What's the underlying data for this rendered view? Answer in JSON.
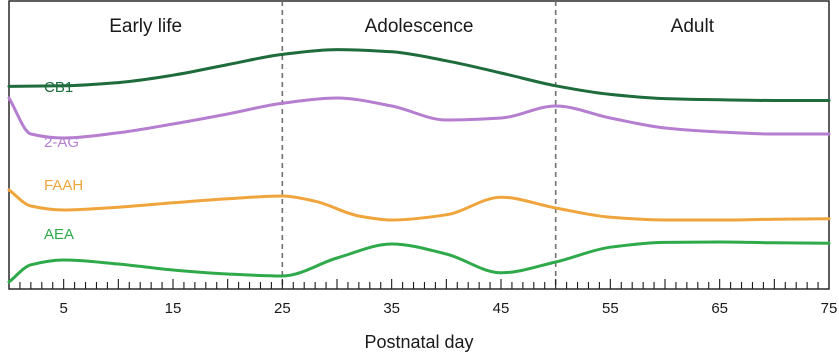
{
  "chart_data": {
    "type": "line",
    "xlabel": "Postnatal day",
    "ylabel": "",
    "xlim": [
      0,
      75
    ],
    "x_ticks": [
      5,
      15,
      25,
      35,
      45,
      55,
      65,
      75
    ],
    "periods": [
      {
        "label": "Early life",
        "start": 0,
        "end": 25
      },
      {
        "label": "Adolescence",
        "start": 25,
        "end": 50
      },
      {
        "label": "Adult",
        "start": 50,
        "end": 75
      }
    ],
    "period_boundaries": [
      25,
      50
    ],
    "grid": false,
    "legend": "inline labels at left",
    "series": [
      {
        "name": "CB1",
        "color": "#1e6b3c",
        "x": [
          0,
          5,
          10,
          15,
          20,
          25,
          30,
          35,
          40,
          45,
          50,
          55,
          60,
          65,
          70,
          75
        ],
        "y": [
          2.3,
          2.32,
          2.42,
          2.65,
          2.98,
          3.3,
          3.45,
          3.38,
          3.1,
          2.72,
          2.32,
          2.05,
          1.92,
          1.88,
          1.86,
          1.86
        ]
      },
      {
        "name": "2-AG",
        "color": "#b57ed0",
        "x": [
          0,
          2,
          5,
          10,
          15,
          20,
          25,
          30,
          35,
          40,
          45,
          50,
          55,
          60,
          65,
          70,
          75
        ],
        "y": [
          1.95,
          1.05,
          0.95,
          1.08,
          1.3,
          1.55,
          1.82,
          1.95,
          1.75,
          1.4,
          1.45,
          1.75,
          1.45,
          1.2,
          1.1,
          1.05,
          1.05
        ]
      },
      {
        "name": "FAAH",
        "color": "#f0a43c",
        "x": [
          0,
          2,
          5,
          10,
          15,
          20,
          25,
          28,
          32,
          35,
          40,
          45,
          50,
          55,
          60,
          65,
          70,
          75
        ],
        "y": [
          0.8,
          0.4,
          0.3,
          0.37,
          0.48,
          0.58,
          0.65,
          0.52,
          0.15,
          0.05,
          0.18,
          0.62,
          0.35,
          0.12,
          0.05,
          0.05,
          0.07,
          0.08
        ]
      },
      {
        "name": "AEA",
        "color": "#2eaa4a",
        "x": [
          0,
          2,
          5,
          10,
          15,
          20,
          25,
          30,
          35,
          40,
          45,
          50,
          55,
          60,
          65,
          70,
          75
        ],
        "y": [
          -1.05,
          -0.62,
          -0.5,
          -0.6,
          -0.75,
          -0.85,
          -0.9,
          -0.45,
          -0.1,
          -0.35,
          -0.82,
          -0.55,
          -0.18,
          -0.06,
          -0.05,
          -0.07,
          -0.08
        ]
      }
    ]
  }
}
